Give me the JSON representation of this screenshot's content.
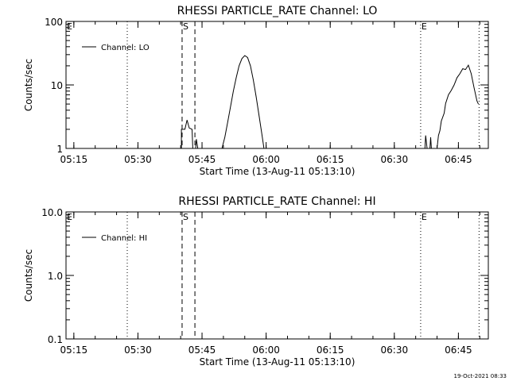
{
  "chart_data": [
    {
      "type": "line",
      "title": "RHESSI PARTICLE_RATE Channel: LO",
      "xlabel": "Start Time (13-Aug-11 05:13:10)",
      "ylabel": "Counts/sec",
      "x_range": [
        "05:13:10",
        "06:52:00"
      ],
      "y_scale": "log",
      "ylim": [
        1,
        100
      ],
      "y_tick_labels": [
        "1",
        "10",
        "100"
      ],
      "x_tick_labels": [
        "05:15",
        "05:30",
        "05:45",
        "06:00",
        "06:15",
        "06:30",
        "06:45"
      ],
      "legend_label": "Channel: LO",
      "legend_position": "top-left",
      "grid": false,
      "markers": [
        {
          "label": "E",
          "time": "05:13:10",
          "style": "none"
        },
        {
          "label": "",
          "time": "05:27:30",
          "style": "dotted"
        },
        {
          "label": "S",
          "time": "05:40:20",
          "style": "dashed"
        },
        {
          "label": "",
          "time": "05:43:20",
          "style": "dashed"
        },
        {
          "label": "E",
          "time": "06:36:10",
          "style": "dotted"
        },
        {
          "label": "",
          "time": "06:49:50",
          "style": "dotted"
        }
      ],
      "series": [
        {
          "points": [
            [
              "05:40:10",
              1
            ],
            [
              "05:40:10",
              2
            ],
            [
              "05:41:00",
              2
            ],
            [
              "05:41:30",
              2.8
            ],
            [
              "05:42:00",
              2.1
            ],
            [
              "05:42:40",
              2.0
            ],
            [
              "05:42:50",
              1
            ],
            [
              "05:43:30",
              1
            ],
            [
              "05:43:40",
              1.4
            ],
            [
              "05:44:00",
              1
            ],
            [
              "05:49:40",
              1
            ],
            [
              "05:50:20",
              1.5
            ],
            [
              "05:51:00",
              2.6
            ],
            [
              "05:51:40",
              4.5
            ],
            [
              "05:52:20",
              8
            ],
            [
              "05:53:00",
              13
            ],
            [
              "05:53:40",
              20
            ],
            [
              "05:54:20",
              26
            ],
            [
              "05:55:00",
              29
            ],
            [
              "05:55:40",
              27
            ],
            [
              "05:56:20",
              20
            ],
            [
              "05:57:00",
              12
            ],
            [
              "05:57:40",
              6.5
            ],
            [
              "05:58:20",
              3.3
            ],
            [
              "05:59:00",
              1.7
            ],
            [
              "05:59:30",
              1
            ],
            [
              "06:37:10",
              1
            ],
            [
              "06:37:20",
              1.6
            ],
            [
              "06:37:40",
              1
            ],
            [
              "06:38:20",
              1
            ],
            [
              "06:38:30",
              1.5
            ],
            [
              "06:38:40",
              1
            ],
            [
              "06:40:00",
              1
            ],
            [
              "06:40:20",
              1.6
            ],
            [
              "06:40:40",
              1.9
            ],
            [
              "06:41:00",
              2.7
            ],
            [
              "06:41:40",
              3.6
            ],
            [
              "06:42:00",
              5.1
            ],
            [
              "06:42:40",
              7.0
            ],
            [
              "06:43:20",
              8.2
            ],
            [
              "06:44:00",
              10
            ],
            [
              "06:44:40",
              13
            ],
            [
              "06:45:20",
              15
            ],
            [
              "06:46:00",
              18
            ],
            [
              "06:46:40",
              17.5
            ],
            [
              "06:47:20",
              20.5
            ],
            [
              "06:48:00",
              15
            ],
            [
              "06:48:40",
              9
            ],
            [
              "06:49:20",
              5.6
            ],
            [
              "06:49:40",
              5
            ]
          ]
        }
      ]
    },
    {
      "type": "line",
      "title": "RHESSI PARTICLE_RATE Channel: HI",
      "xlabel": "Start Time (13-Aug-11 05:13:10)",
      "ylabel": "Counts/sec",
      "x_range": [
        "05:13:10",
        "06:52:00"
      ],
      "y_scale": "log",
      "ylim": [
        0.1,
        10
      ],
      "y_tick_labels": [
        "0.1",
        "1.0",
        "10.0"
      ],
      "x_tick_labels": [
        "05:15",
        "05:30",
        "05:45",
        "06:00",
        "06:15",
        "06:30",
        "06:45"
      ],
      "legend_label": "Channel: HI",
      "legend_position": "top-left",
      "grid": false,
      "markers": [
        {
          "label": "E",
          "time": "05:13:10",
          "style": "none"
        },
        {
          "label": "",
          "time": "05:27:30",
          "style": "dotted"
        },
        {
          "label": "S",
          "time": "05:40:20",
          "style": "dashed"
        },
        {
          "label": "",
          "time": "05:43:20",
          "style": "dashed"
        },
        {
          "label": "E",
          "time": "06:36:10",
          "style": "dotted"
        },
        {
          "label": "",
          "time": "06:49:50",
          "style": "dotted"
        }
      ],
      "series": [
        {
          "points": []
        }
      ]
    }
  ],
  "footer": {
    "timestamp": "19-Oct-2021 08:33"
  }
}
